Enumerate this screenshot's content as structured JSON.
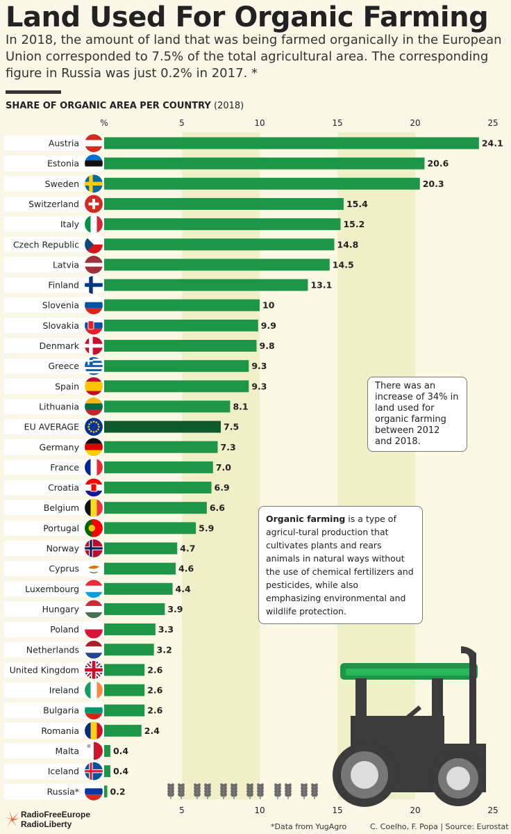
{
  "header": {
    "title": "Land Used For Organic Farming",
    "subtitle": "In 2018,  the amount of land that was being farmed organically in the European Union corresponded to 7.5% of the total agricultural area. The corresponding figure in Russia was just 0.2% in 2017. *",
    "chart_label_bold": "SHARE OF ORGANIC AREA PER COUNTRY",
    "chart_label_year": "(2018)"
  },
  "notes": {
    "increase": "There was an increase of 34% in land used for organic farming between 2012 and 2018.",
    "definition_bold": "Organic farming",
    "definition_rest": " is a type of agricul-tural production that cultivates plants and rears animals in natural ways without the use of chemical fertilizers and pesticides, while also emphasizing environmental and wildlife protection."
  },
  "footer": {
    "logo_line1": "RadioFreeEurope",
    "logo_line2": "RadioLiberty",
    "data_note": "*Data from YugAgro",
    "credits": "C. Coelho, F. Popa | Source: Eurostat"
  },
  "colors": {
    "bar": "#1e9648",
    "bar_highlight": "#0f5a2d",
    "band": "#faf7e6",
    "row_label_bg": "#ffffff",
    "tractor": "#3b3b3b",
    "tractor_roof": "#1e9648"
  },
  "chart_data": {
    "type": "bar",
    "orientation": "horizontal",
    "title": "SHARE OF ORGANIC AREA PER COUNTRY (2018)",
    "unit_label": "%",
    "xlim": [
      0,
      25
    ],
    "xticks": [
      5,
      10,
      15,
      20,
      25
    ],
    "categories": [
      "Austria",
      "Estonia",
      "Sweden",
      "Switzerland",
      "Italy",
      "Czech Republic",
      "Latvia",
      "Finland",
      "Slovenia",
      "Slovakia",
      "Denmark",
      "Greece",
      "Spain",
      "Lithuania",
      "EU AVERAGE",
      "Germany",
      "France",
      "Croatia",
      "Belgium",
      "Portugal",
      "Norway",
      "Cyprus",
      "Luxembourg",
      "Hungary",
      "Poland",
      "Netherlands",
      "United Kingdom",
      "Ireland",
      "Bulgaria",
      "Romania",
      "Malta",
      "Iceland",
      "Russia*"
    ],
    "values": [
      24.1,
      20.6,
      20.3,
      15.4,
      15.2,
      14.8,
      14.5,
      13.1,
      10,
      9.9,
      9.8,
      9.3,
      9.3,
      8.1,
      7.5,
      7.3,
      7.0,
      6.9,
      6.6,
      5.9,
      4.7,
      4.6,
      4.4,
      3.9,
      3.3,
      3.2,
      2.6,
      2.6,
      2.6,
      2.4,
      0.4,
      0.4,
      0.2
    ],
    "value_labels": [
      "24.1",
      "20.6",
      "20.3",
      "15.4",
      "15.2",
      "14.8",
      "14.5",
      "13.1",
      "10",
      "9.9",
      "9.8",
      "9.3",
      "9.3",
      "8.1",
      "7.5",
      "7.3",
      "7.0",
      "6.9",
      "6.6",
      "5.9",
      "4.7",
      "4.6",
      "4.4",
      "3.9",
      "3.3",
      "3.2",
      "2.6",
      "2.6",
      "2.6",
      "2.4",
      "0.4",
      "0.4",
      "0.2"
    ],
    "highlight": "EU AVERAGE",
    "flags": [
      "austria-flag",
      "estonia-flag",
      "sweden-flag",
      "switzerland-flag",
      "italy-flag",
      "czech-republic-flag",
      "latvia-flag",
      "finland-flag",
      "slovenia-flag",
      "slovakia-flag",
      "denmark-flag",
      "greece-flag",
      "spain-flag",
      "lithuania-flag",
      "eu-flag",
      "germany-flag",
      "france-flag",
      "croatia-flag",
      "belgium-flag",
      "portugal-flag",
      "norway-flag",
      "cyprus-flag",
      "luxembourg-flag",
      "hungary-flag",
      "poland-flag",
      "netherlands-flag",
      "uk-flag",
      "ireland-flag",
      "bulgaria-flag",
      "romania-flag",
      "malta-flag",
      "iceland-flag",
      "russia-flag"
    ]
  }
}
